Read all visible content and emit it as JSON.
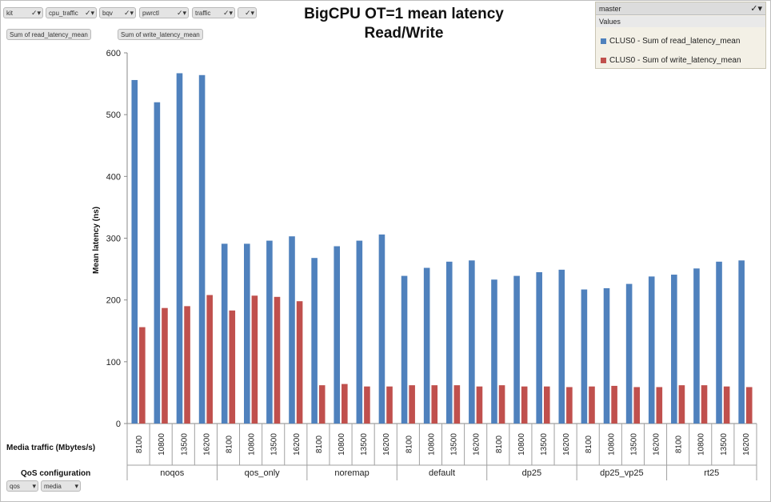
{
  "filters": {
    "kit": "kit",
    "cpu_traffic": "cpu_traffic",
    "bqv": "bqv",
    "pwrctl": "pwrctl",
    "traffic": "traffic",
    "filter_icon": "funnel-check-icon"
  },
  "value_fields": [
    "Sum of read_latency_mean",
    "Sum of write_latency_mean"
  ],
  "legend": {
    "header": "master",
    "sub_header": "Values",
    "items": [
      "CLUS0 - Sum of read_latency_mean",
      "CLUS0 - Sum of write_latency_mean"
    ]
  },
  "row_fields": {
    "media_traffic_label": "Media traffic (Mbytes/s)",
    "qos_label": "QoS configuration",
    "qos_button": "qos",
    "media_button": "media"
  },
  "chart_data": {
    "type": "bar",
    "title": "BigCPU OT=1 mean latency",
    "subtitle": "Read/Write",
    "ylabel": "Mean latency (ns)",
    "ylim": [
      0,
      600
    ],
    "yticks": [
      0,
      100,
      200,
      300,
      400,
      500,
      600
    ],
    "grid": false,
    "groups": [
      "noqos",
      "qos_only",
      "noremap",
      "default",
      "dp25",
      "dp25_vp25",
      "rt25"
    ],
    "subcategories": [
      "8100",
      "10800",
      "13500",
      "16200"
    ],
    "colors": {
      "read": "#4f81bd",
      "write": "#c0504d"
    },
    "series": [
      {
        "name": "CLUS0 - Sum of read_latency_mean",
        "values": [
          556,
          520,
          567,
          564,
          291,
          291,
          296,
          303,
          268,
          287,
          296,
          306,
          239,
          252,
          262,
          264,
          233,
          239,
          245,
          249,
          217,
          219,
          226,
          238,
          241,
          251,
          262,
          264
        ]
      },
      {
        "name": "CLUS0 - Sum of write_latency_mean",
        "values": [
          156,
          187,
          190,
          208,
          183,
          207,
          205,
          198,
          62,
          64,
          60,
          60,
          62,
          62,
          62,
          60,
          62,
          60,
          60,
          59,
          60,
          61,
          59,
          59,
          62,
          62,
          60,
          59
        ]
      }
    ]
  }
}
